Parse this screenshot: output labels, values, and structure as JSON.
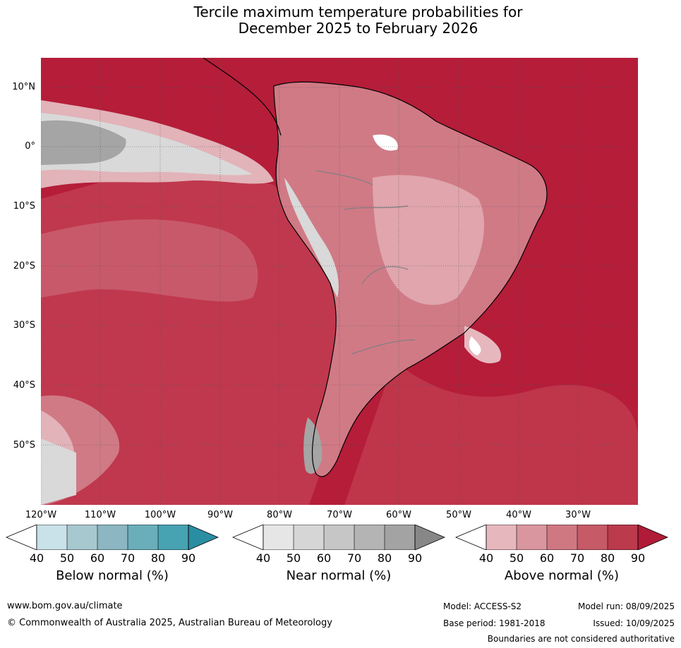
{
  "title_line1": "Tercile maximum temperature probabilities for",
  "title_line2": "December 2025 to February 2026",
  "lat_labels": [
    "10°N",
    "0°",
    "10°S",
    "20°S",
    "30°S",
    "40°S",
    "50°S"
  ],
  "lon_labels": [
    "120°W",
    "110°W",
    "100°W",
    "90°W",
    "80°W",
    "70°W",
    "60°W",
    "50°W",
    "40°W",
    "30°W"
  ],
  "colorbars": {
    "below": {
      "title": "Below normal (%)",
      "ticks": [
        "40",
        "50",
        "60",
        "70",
        "80",
        "90"
      ],
      "colors": [
        "#c9e1e8",
        "#a8c8cf",
        "#8bb6c2",
        "#6aaeba",
        "#47a2b2",
        "#2a8ea3"
      ]
    },
    "near": {
      "title": "Near normal (%)",
      "ticks": [
        "40",
        "50",
        "60",
        "70",
        "80",
        "90"
      ],
      "colors": [
        "#e6e6e6",
        "#d6d6d6",
        "#c6c6c6",
        "#b4b4b4",
        "#a3a3a3",
        "#878787"
      ]
    },
    "above": {
      "title": "Above normal (%)",
      "ticks": [
        "40",
        "50",
        "60",
        "70",
        "80",
        "90"
      ],
      "colors": [
        "#e6b8be",
        "#d9969f",
        "#cf7882",
        "#c65a67",
        "#bb3a4c",
        "#b01c38"
      ]
    }
  },
  "footer": {
    "url": "www.bom.gov.au/climate",
    "copyright": "© Commonwealth of Australia 2025, Australian Bureau of Meteorology",
    "model": "Model: ACCESS-S2",
    "model_run": "Model run: 08/09/2025",
    "base_period": "Base period: 1981-2018",
    "issued": "Issued: 10/09/2025",
    "boundaries": "Boundaries are not considered authoritative"
  }
}
